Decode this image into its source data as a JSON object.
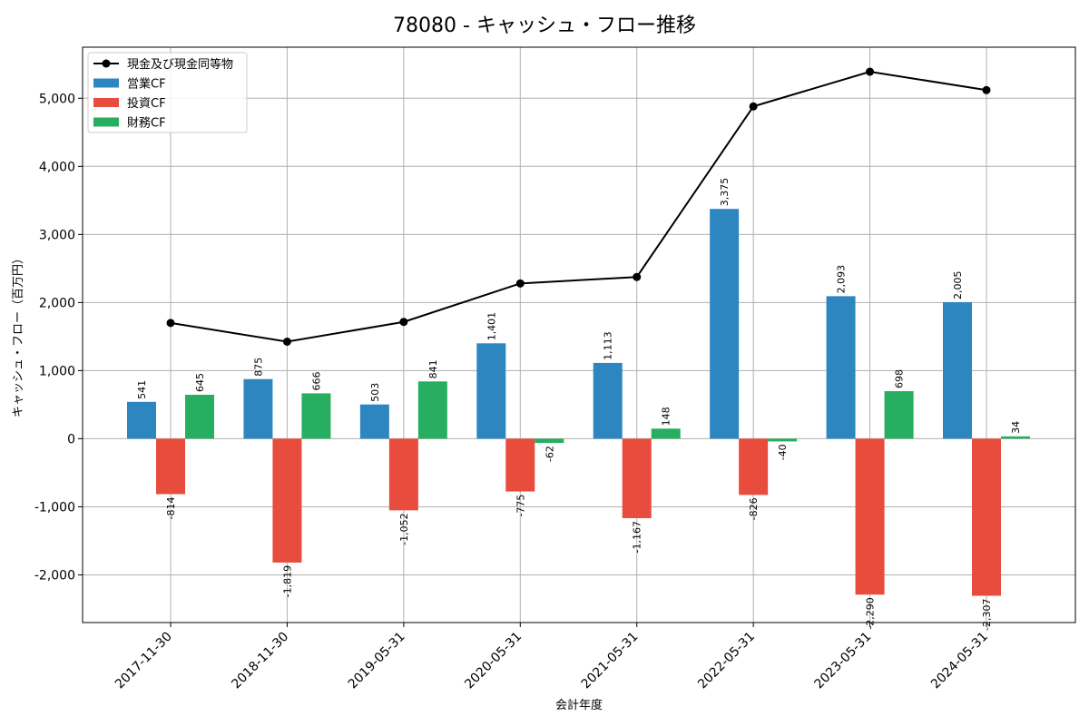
{
  "chart_data": {
    "type": "bar",
    "title": "78080 - キャッシュ・フロー推移",
    "xlabel": "会計年度",
    "ylabel": "キャッシュ・フロー（百万円）",
    "categories": [
      "2017-11-30",
      "2018-11-30",
      "2019-05-31",
      "2020-05-31",
      "2021-05-31",
      "2022-05-31",
      "2023-05-31",
      "2024-05-31"
    ],
    "series": [
      {
        "name": "営業CF",
        "kind": "bar",
        "color": "#2e86c1",
        "values": [
          541,
          875,
          503,
          1401,
          1113,
          3375,
          2093,
          2005
        ]
      },
      {
        "name": "投資CF",
        "kind": "bar",
        "color": "#e74c3c",
        "values": [
          -814,
          -1819,
          -1052,
          -775,
          -1167,
          -826,
          -2290,
          -2307
        ]
      },
      {
        "name": "財務CF",
        "kind": "bar",
        "color": "#27ae60",
        "values": [
          645,
          666,
          841,
          -62,
          148,
          -40,
          698,
          34
        ]
      },
      {
        "name": "現金及び現金同等物",
        "kind": "line",
        "color": "#000000",
        "values": [
          1700,
          1425,
          1715,
          2280,
          2375,
          4880,
          5390,
          5120
        ]
      }
    ],
    "ylim": [
      -2700,
      5750
    ],
    "yticks": [
      -2000,
      -1000,
      0,
      1000,
      2000,
      3000,
      4000,
      5000
    ],
    "ytick_labels": [
      "-2,000",
      "-1,000",
      "0",
      "1,000",
      "2,000",
      "3,000",
      "4,000",
      "5,000"
    ],
    "grid": true,
    "legend_position": "top-left"
  }
}
